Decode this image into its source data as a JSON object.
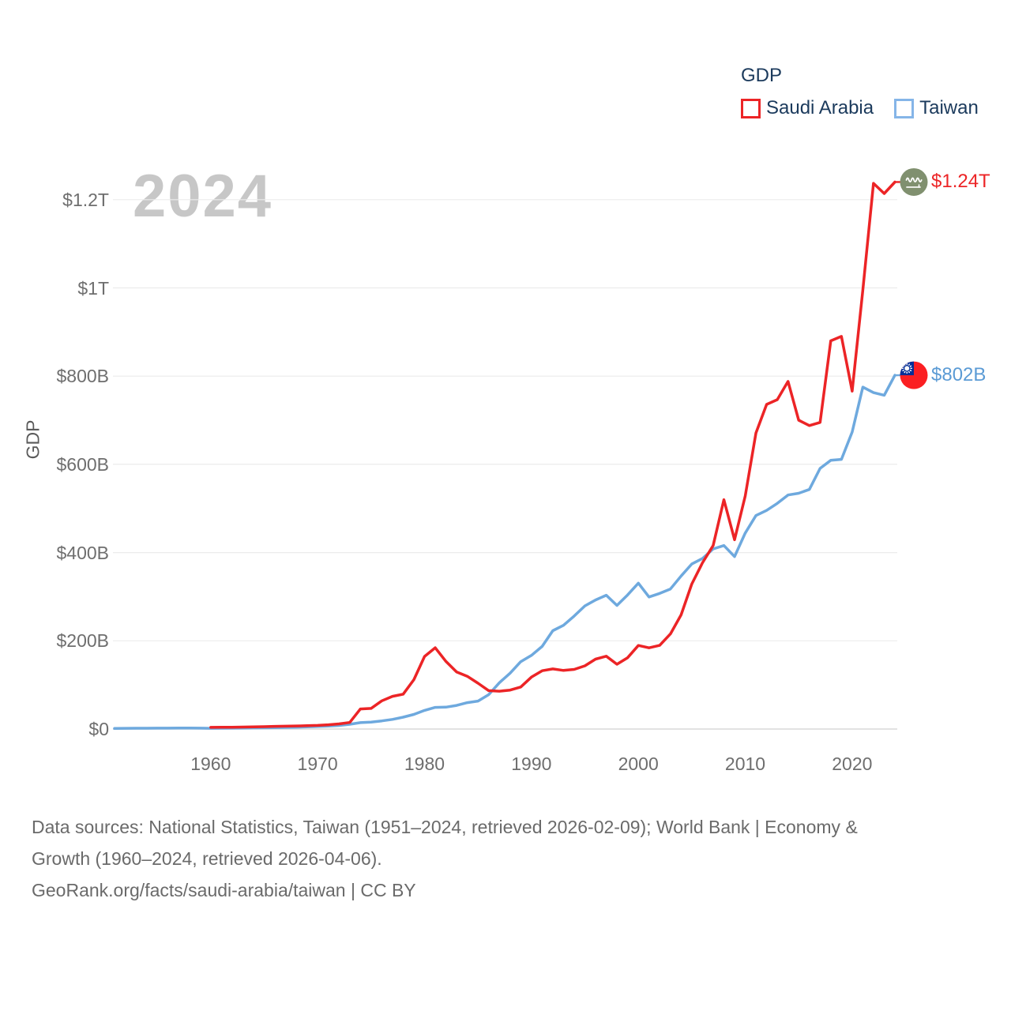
{
  "watermark": "2024",
  "legend": {
    "title": "GDP"
  },
  "footer": {
    "lines": [
      "Data sources: National Statistics, Taiwan (1951–2024, retrieved 2026-02-09); World Bank | Economy &",
      "Growth (1960–2024, retrieved 2026-04-06).",
      "GeoRank.org/facts/saudi-arabia/taiwan | CC BY"
    ]
  },
  "chart_data": {
    "type": "line",
    "title": "GDP",
    "ylabel": "GDP",
    "unit": "billion USD",
    "watermark_year": "2024",
    "grid": "horizontal-only",
    "legend_position": "top-right",
    "x_axis": {
      "min_year": 1951,
      "max_year": 2024,
      "tick_years": [
        "1960",
        "1970",
        "1980",
        "1990",
        "2000",
        "2010",
        "2020"
      ]
    },
    "y_axis": {
      "min": 0,
      "max_billion": 1300,
      "ticks": [
        {
          "label": "$0",
          "value": 0
        },
        {
          "label": "$200B",
          "value": 200
        },
        {
          "label": "$400B",
          "value": 400
        },
        {
          "label": "$600B",
          "value": 600
        },
        {
          "label": "$800B",
          "value": 800
        },
        {
          "label": "$1T",
          "value": 1000
        },
        {
          "label": "$1.2T",
          "value": 1200
        }
      ]
    },
    "series": [
      {
        "id": "saudi-arabia",
        "name": "Saudi Arabia",
        "color": "#ec2426",
        "legend_swatch_color": "#ec2426",
        "end_label": "$1.24T",
        "end_label_color": "#ec2426",
        "flag": "saudi-arabia",
        "start_year": 1960,
        "values_billion_usd": [
          3.7,
          3.9,
          4.2,
          4.5,
          4.9,
          5.4,
          6.0,
          6.4,
          7.0,
          7.6,
          8.3,
          9.7,
          11.6,
          14.9,
          45.4,
          46.8,
          64.0,
          74.2,
          79.0,
          111.9,
          164.5,
          184.3,
          153.2,
          129.2,
          119.6,
          103.9,
          87.0,
          85.7,
          88.3,
          95.3,
          117.6,
          132.2,
          136.3,
          132.8,
          135.2,
          143.3,
          158.4,
          165.0,
          146.8,
          161.7,
          189.5,
          184.1,
          189.6,
          215.6,
          258.7,
          328.5,
          376.9,
          415.9,
          519.8,
          429.1,
          528.2,
          671.2,
          735.9,
          746.6,
          788.0,
          700.0,
          688.0,
          695.0,
          880.0,
          890.0,
          766.0,
          995.0,
          1237.0,
          1214.0,
          1240.0
        ]
      },
      {
        "id": "taiwan",
        "name": "Taiwan",
        "color": "#6ea9de",
        "legend_swatch_color": "#85b5e8",
        "end_label": "$802B",
        "end_label_color": "#5b9bd5",
        "flag": "taiwan",
        "start_year": 1951,
        "values_billion_usd": [
          1.2,
          1.7,
          1.8,
          1.8,
          2.0,
          1.9,
          2.1,
          2.1,
          2.0,
          1.7,
          1.8,
          1.9,
          2.2,
          2.6,
          2.8,
          3.2,
          3.6,
          4.2,
          4.9,
          5.7,
          6.6,
          8.0,
          10.7,
          14.5,
          15.5,
          18.5,
          21.9,
          26.8,
          33.2,
          42.3,
          49.0,
          49.6,
          53.6,
          59.8,
          63.4,
          77.9,
          105.0,
          126.5,
          152.7,
          166.8,
          187.2,
          222.9,
          235.1,
          256.3,
          279.1,
          292.5,
          303.3,
          280.2,
          304.1,
          330.7,
          299.3,
          307.4,
          317.4,
          346.9,
          374.1,
          386.5,
          408.3,
          416.0,
          390.8,
          444.3,
          484.0,
          495.6,
          511.6,
          530.5,
          534.5,
          543.1,
          590.8,
          609.2,
          611.3,
          673.2,
          775.1,
          762.6,
          756.6,
          802.0
        ]
      }
    ]
  }
}
